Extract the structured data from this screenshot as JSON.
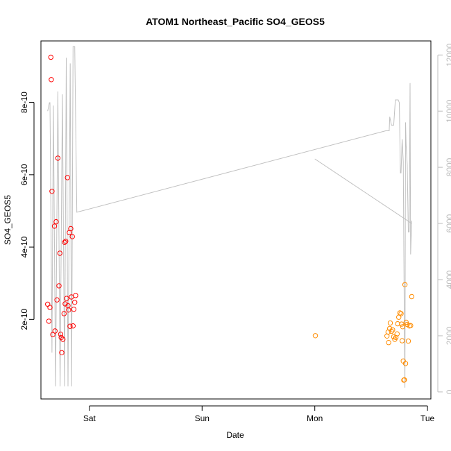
{
  "chart_data": {
    "type": "scatter",
    "title": "ATOM1 Northeast_Pacific SO4_GEOS5",
    "xlabel": "Date",
    "ylabel": "SO4_GEOS5",
    "x_ticks": [
      "Sat",
      "Sun",
      "Mon",
      "Tue"
    ],
    "x_tick_days": [
      1,
      2,
      3,
      4
    ],
    "xlim": [
      0.57,
      4.03
    ],
    "ylim": [
      -2e-11,
      9.7e-10
    ],
    "y_ticks": [
      {
        "value": 2e-10,
        "label": "2e-10"
      },
      {
        "value": 4e-10,
        "label": "4e-10"
      },
      {
        "value": 6e-10,
        "label": "6e-10"
      },
      {
        "value": 8e-10,
        "label": "8e-10"
      }
    ],
    "y2lim": [
      -250,
      12500
    ],
    "y2_ticks": [
      {
        "value": 0,
        "label": "0"
      },
      {
        "value": 2000,
        "label": "2000"
      },
      {
        "value": 4000,
        "label": "4000"
      },
      {
        "value": 6000,
        "label": "6000"
      },
      {
        "value": 8000,
        "label": "8000"
      },
      {
        "value": 10000,
        "label": "10000"
      },
      {
        "value": 12000,
        "label": "12000"
      }
    ],
    "colors": {
      "series_1": "#ff0000",
      "series_2": "#ff8c00",
      "altitude_line": "#c0c0c0",
      "right_axis": "#bdbdbd"
    },
    "series": [
      {
        "color": "#ff0000",
        "marker": "open-circle",
        "points": [
          [
            0.63,
            2.42e-10
          ],
          [
            0.64,
            1.95e-10
          ],
          [
            0.65,
            2.33e-10
          ],
          [
            0.658,
            9.25e-10
          ],
          [
            0.662,
            8.63e-10
          ],
          [
            0.668,
            5.54e-10
          ],
          [
            0.675,
            1.58e-10
          ],
          [
            0.69,
            4.58e-10
          ],
          [
            0.695,
            1.68e-10
          ],
          [
            0.705,
            4.7e-10
          ],
          [
            0.712,
            2.54e-10
          ],
          [
            0.72,
            6.46e-10
          ],
          [
            0.73,
            2.93e-10
          ],
          [
            0.738,
            3.83e-10
          ],
          [
            0.745,
            1.59e-10
          ],
          [
            0.75,
            1.5e-10
          ],
          [
            0.755,
            1.08e-10
          ],
          [
            0.765,
            1.45e-10
          ],
          [
            0.775,
            2.16e-10
          ],
          [
            0.78,
            4.13e-10
          ],
          [
            0.785,
            2.43e-10
          ],
          [
            0.79,
            4.16e-10
          ],
          [
            0.798,
            2.58e-10
          ],
          [
            0.805,
            5.92e-10
          ],
          [
            0.81,
            2.38e-10
          ],
          [
            0.815,
            2.26e-10
          ],
          [
            0.822,
            4.4e-10
          ],
          [
            0.828,
            1.81e-10
          ],
          [
            0.835,
            4.51e-10
          ],
          [
            0.84,
            2.62e-10
          ],
          [
            0.848,
            4.29e-10
          ],
          [
            0.855,
            1.82e-10
          ],
          [
            0.862,
            2.28e-10
          ],
          [
            0.87,
            2.47e-10
          ],
          [
            0.878,
            2.66e-10
          ]
        ]
      },
      {
        "color": "#ff8c00",
        "marker": "open-circle",
        "points": [
          [
            3.005,
            1.55e-10
          ],
          [
            3.64,
            1.54e-10
          ],
          [
            3.65,
            1.65e-10
          ],
          [
            3.655,
            1.36e-10
          ],
          [
            3.665,
            1.75e-10
          ],
          [
            3.67,
            1.9e-10
          ],
          [
            3.68,
            1.67e-10
          ],
          [
            3.69,
            1.71e-10
          ],
          [
            3.7,
            1.52e-10
          ],
          [
            3.71,
            1.45e-10
          ],
          [
            3.72,
            1.5e-10
          ],
          [
            3.73,
            1.6e-10
          ],
          [
            3.735,
            1.88e-10
          ],
          [
            3.745,
            2.06e-10
          ],
          [
            3.755,
            2.18e-10
          ],
          [
            3.765,
            2.16e-10
          ],
          [
            3.77,
            1.87e-10
          ],
          [
            3.775,
            1.41e-10
          ],
          [
            3.78,
            1.8e-10
          ],
          [
            3.785,
            8.5e-11
          ],
          [
            3.79,
            3.2e-11
          ],
          [
            3.795,
            3.3e-11
          ],
          [
            3.8,
            2.96e-10
          ],
          [
            3.805,
            7.8e-11
          ],
          [
            3.81,
            1.92e-10
          ],
          [
            3.82,
            1.86e-10
          ],
          [
            3.83,
            1.4e-10
          ],
          [
            3.84,
            1.82e-10
          ],
          [
            3.85,
            1.83e-10
          ],
          [
            3.86,
            2.63e-10
          ]
        ]
      }
    ],
    "altitude_line": {
      "axis": "right",
      "segments": [
        [
          [
            0.63,
            10000
          ],
          [
            0.645,
            10300
          ],
          [
            0.65,
            10300
          ],
          [
            0.66,
            5800
          ],
          [
            0.668,
            1400
          ],
          [
            0.68,
            10200
          ],
          [
            0.7,
            200
          ],
          [
            0.72,
            10700
          ],
          [
            0.74,
            200
          ],
          [
            0.76,
            10600
          ],
          [
            0.78,
            200
          ],
          [
            0.795,
            11900
          ],
          [
            0.81,
            200
          ],
          [
            0.83,
            11700
          ],
          [
            0.842,
            200
          ],
          [
            0.855,
            12300
          ],
          [
            0.87,
            12300
          ],
          [
            0.888,
            6400
          ],
          [
            3.63,
            9300
          ],
          [
            3.66,
            9300
          ],
          [
            3.665,
            9800
          ],
          [
            3.68,
            9500
          ],
          [
            3.7,
            9500
          ],
          [
            3.715,
            10400
          ],
          [
            3.74,
            10400
          ],
          [
            3.75,
            10300
          ],
          [
            3.76,
            7800
          ],
          [
            3.765,
            7800
          ],
          [
            3.775,
            9000
          ],
          [
            3.785,
            8200
          ],
          [
            3.795,
            2100
          ],
          [
            3.8,
            150
          ],
          [
            3.805,
            9600
          ],
          [
            3.81,
            8800
          ],
          [
            3.82,
            8100
          ],
          [
            3.83,
            5700
          ],
          [
            3.838,
            5700
          ],
          [
            3.845,
            11000
          ],
          [
            3.85,
            4900
          ],
          [
            3.86,
            6100
          ]
        ],
        [
          [
            3.0,
            8300
          ],
          [
            3.86,
            6000
          ]
        ]
      ]
    }
  }
}
